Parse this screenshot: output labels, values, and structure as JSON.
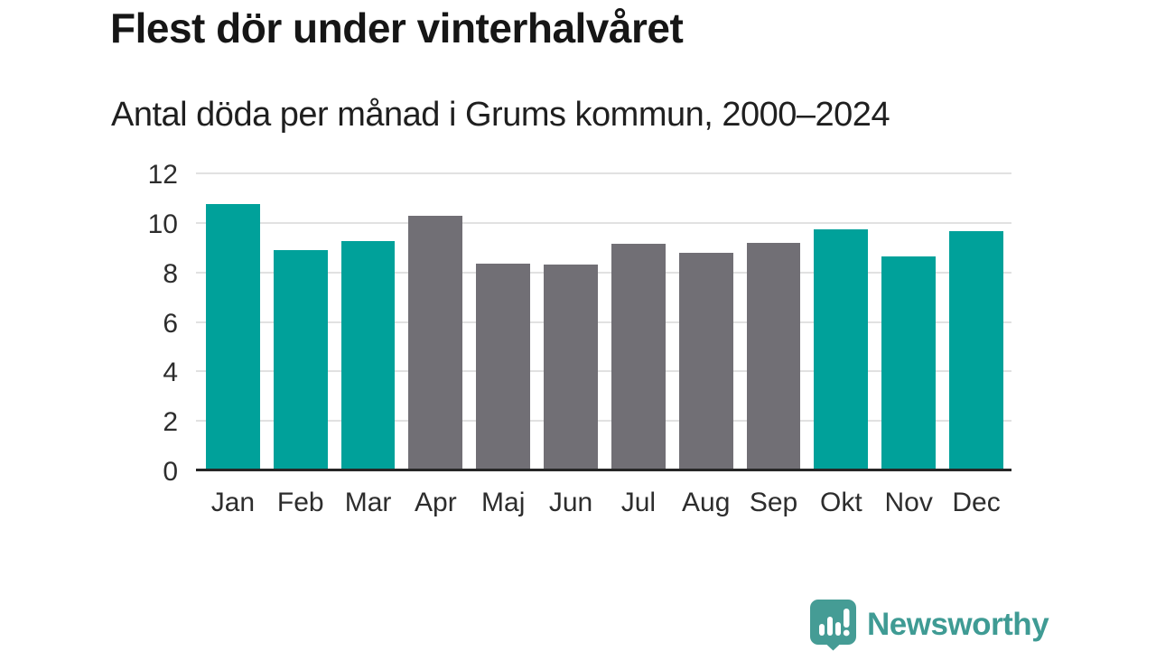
{
  "header": {
    "title": "Flest dör under vinterhalvåret",
    "subtitle": "Antal döda per månad i Grums kommun, 2000–2024"
  },
  "chart_data": {
    "type": "bar",
    "title": "Flest dör under vinterhalvåret",
    "subtitle": "Antal döda per månad i Grums kommun, 2000–2024",
    "categories": [
      "Jan",
      "Feb",
      "Mar",
      "Apr",
      "Maj",
      "Jun",
      "Jul",
      "Aug",
      "Sep",
      "Okt",
      "Nov",
      "Dec"
    ],
    "values": [
      10.75,
      8.9,
      9.25,
      10.3,
      8.35,
      8.3,
      9.15,
      8.8,
      9.2,
      9.75,
      8.65,
      9.65
    ],
    "xlabel": "",
    "ylabel": "",
    "ylim": [
      0,
      12
    ],
    "yticks": [
      0,
      2,
      4,
      6,
      8,
      10,
      12
    ],
    "grid": "horizontal-only",
    "legend": "none",
    "highlight_months": [
      "Jan",
      "Feb",
      "Mar",
      "Okt",
      "Nov",
      "Dec"
    ],
    "colors": {
      "winter_bar": "#00A19A",
      "summer_bar": "#716F75",
      "gridline": "#e1e1e1",
      "axis_line": "#262626",
      "tick_label": "#2d2d2d"
    }
  },
  "branding": {
    "logo_text": "Newsworthy",
    "logo_color": "#3f9b94",
    "logo_icon": "newsworthy-speech-bubble-chart-icon"
  }
}
